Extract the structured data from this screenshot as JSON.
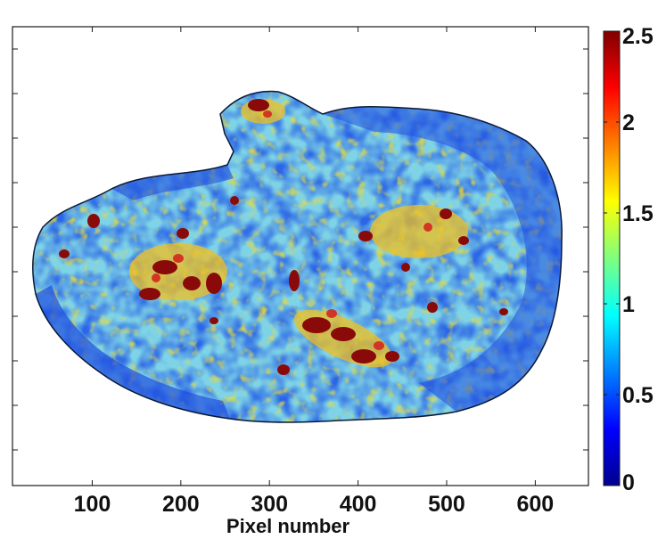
{
  "chart_data": {
    "type": "heatmap",
    "title": "",
    "xlabel": "Pixel number",
    "ylabel": "",
    "x_ticks": [
      100,
      200,
      300,
      400,
      500,
      600
    ],
    "xlim": [
      10,
      660
    ],
    "grid": false,
    "colormap": "jet",
    "colorbar": {
      "range": [
        0,
        2.5
      ],
      "ticks": [
        0,
        0.5,
        1,
        1.5,
        2,
        2.5
      ],
      "tick_labels": [
        "0",
        "0.5",
        "1",
        "1.5",
        "2",
        "2.5"
      ],
      "placement": "right"
    },
    "colors": {
      "low": "#00008f",
      "mid_low": "#2a62e6",
      "mid": "#7fd6e8",
      "mid_high": "#e8e83a",
      "high": "#8b0000"
    }
  }
}
